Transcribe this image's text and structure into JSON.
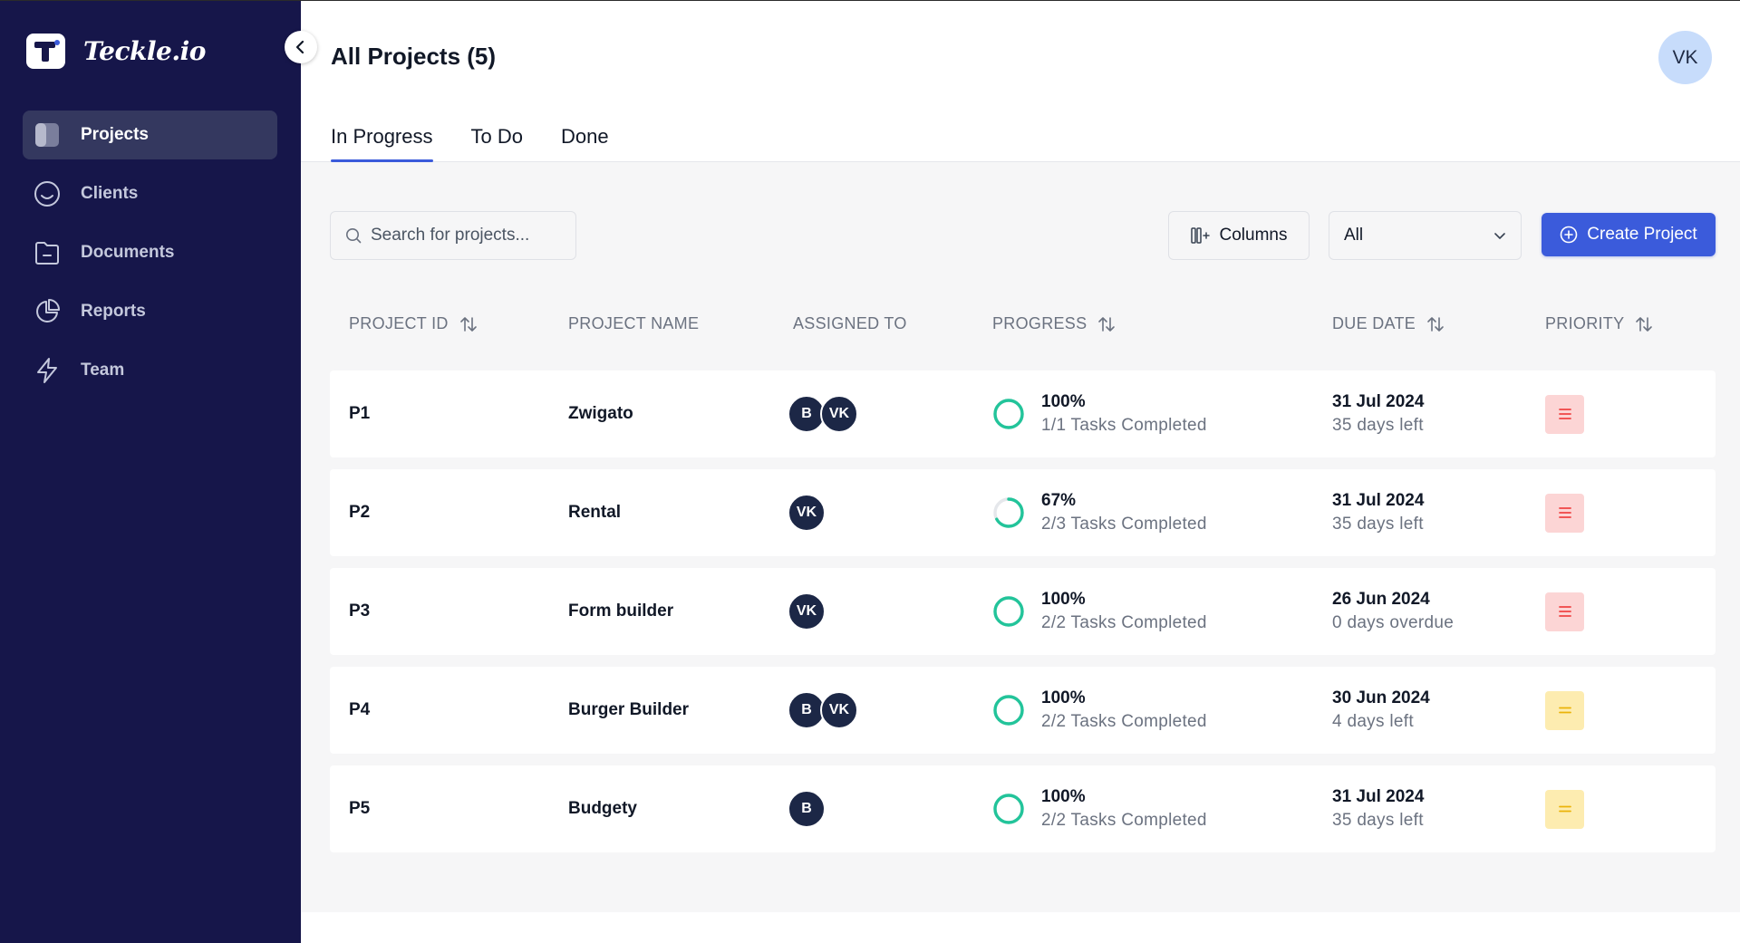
{
  "brand": {
    "name": "Teckle.io"
  },
  "sidebar": {
    "items": [
      {
        "label": "Projects",
        "icon": "projects-icon",
        "active": true
      },
      {
        "label": "Clients",
        "icon": "clients-icon",
        "active": false
      },
      {
        "label": "Documents",
        "icon": "documents-icon",
        "active": false
      },
      {
        "label": "Reports",
        "icon": "reports-icon",
        "active": false
      },
      {
        "label": "Team",
        "icon": "team-icon",
        "active": false
      }
    ]
  },
  "header": {
    "title": "All Projects (5)",
    "user_initials": "VK",
    "tabs": [
      {
        "label": "In Progress",
        "active": true
      },
      {
        "label": "To Do",
        "active": false
      },
      {
        "label": "Done",
        "active": false
      }
    ]
  },
  "toolbar": {
    "search_placeholder": "Search for projects...",
    "columns_label": "Columns",
    "filter_value": "All",
    "create_label": "Create Project"
  },
  "table": {
    "headers": {
      "project_id": "PROJECT ID",
      "project_name": "PROJECT NAME",
      "assigned_to": "ASSIGNED TO",
      "progress": "PROGRESS",
      "due_date": "DUE DATE",
      "priority": "PRIORITY"
    },
    "rows": [
      {
        "id": "P1",
        "name": "Zwigato",
        "assignees": [
          "B",
          "VK"
        ],
        "progress_pct": "100%",
        "progress": 1.0,
        "tasks": "1/1 Tasks Completed",
        "due_date": "31 Jul 2024",
        "due_note": "35 days left",
        "priority": "high"
      },
      {
        "id": "P2",
        "name": "Rental",
        "assignees": [
          "VK"
        ],
        "progress_pct": "67%",
        "progress": 0.67,
        "tasks": "2/3 Tasks Completed",
        "due_date": "31 Jul 2024",
        "due_note": "35 days left",
        "priority": "high"
      },
      {
        "id": "P3",
        "name": "Form builder",
        "assignees": [
          "VK"
        ],
        "progress_pct": "100%",
        "progress": 1.0,
        "tasks": "2/2 Tasks Completed",
        "due_date": "26 Jun 2024",
        "due_note": "0 days overdue",
        "priority": "high"
      },
      {
        "id": "P4",
        "name": "Burger Builder",
        "assignees": [
          "B",
          "VK"
        ],
        "progress_pct": "100%",
        "progress": 1.0,
        "tasks": "2/2 Tasks Completed",
        "due_date": "30 Jun 2024",
        "due_note": "4 days left",
        "priority": "medium"
      },
      {
        "id": "P5",
        "name": "Budgety",
        "assignees": [
          "B"
        ],
        "progress_pct": "100%",
        "progress": 1.0,
        "tasks": "2/2 Tasks Completed",
        "due_date": "31 Jul 2024",
        "due_note": "35 days left",
        "priority": "medium"
      }
    ]
  },
  "colors": {
    "sidebar_bg": "#16164a",
    "accent": "#3b5bdb",
    "progress": "#22c49a",
    "priority_high": "#ef4444",
    "priority_medium": "#eab308"
  }
}
